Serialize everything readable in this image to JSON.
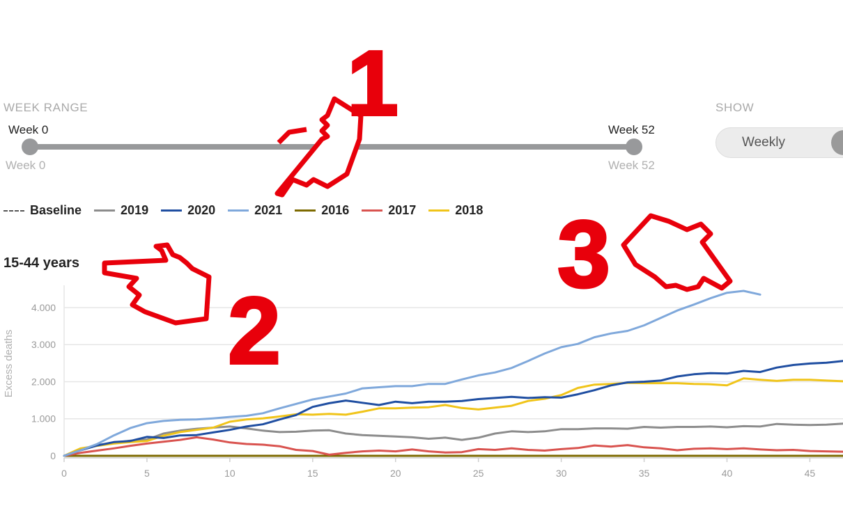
{
  "week_range": {
    "label": "WEEK RANGE",
    "start_top": "Week 0",
    "end_top": "Week 52",
    "start_bottom": "Week 0",
    "end_bottom": "Week 52"
  },
  "show": {
    "label": "SHOW",
    "option": "Weekly"
  },
  "legend": [
    {
      "name": "Baseline",
      "color": "#555555",
      "dashed": true
    },
    {
      "name": "2019",
      "color": "#8c8c8c"
    },
    {
      "name": "2020",
      "color": "#1f4ea1"
    },
    {
      "name": "2021",
      "color": "#7fa8db"
    },
    {
      "name": "2016",
      "color": "#7d6a00"
    },
    {
      "name": "2017",
      "color": "#d9534f"
    },
    {
      "name": "2018",
      "color": "#f0c419"
    }
  ],
  "section_title": "15-44 years",
  "annotations": [
    "1",
    "2",
    "3"
  ],
  "chart_data": {
    "type": "line",
    "ylabel": "Excess deaths",
    "xlabel": "",
    "xlim": [
      0,
      47
    ],
    "ylim": [
      0,
      4600
    ],
    "x_ticks": [
      "0",
      "5",
      "10",
      "15",
      "20",
      "25",
      "30",
      "35",
      "40",
      "45"
    ],
    "y_ticks": [
      {
        "v": 0,
        "label": "0"
      },
      {
        "v": 1000,
        "label": "1.000"
      },
      {
        "v": 2000,
        "label": "2.000"
      },
      {
        "v": 3000,
        "label": "3.000"
      },
      {
        "v": 4000,
        "label": "4.000"
      }
    ],
    "series": [
      {
        "name": "2021",
        "color": "#7fa8db",
        "x": [
          0,
          1,
          2,
          3,
          4,
          5,
          6,
          7,
          8,
          9,
          10,
          11,
          12,
          13,
          14,
          15,
          16,
          17,
          18,
          19,
          20,
          21,
          22,
          23,
          24,
          25,
          26,
          27,
          28,
          29,
          30,
          31,
          32,
          33,
          34,
          35,
          36,
          37,
          38,
          39,
          40,
          41,
          42
        ],
        "values": [
          0,
          150,
          320,
          550,
          750,
          880,
          940,
          970,
          980,
          1010,
          1050,
          1080,
          1150,
          1280,
          1400,
          1520,
          1600,
          1680,
          1820,
          1850,
          1880,
          1880,
          1940,
          1940,
          2060,
          2170,
          2250,
          2370,
          2560,
          2760,
          2930,
          3020,
          3200,
          3300,
          3370,
          3520,
          3720,
          3920,
          4080,
          4250,
          4400,
          4450,
          4350
        ]
      },
      {
        "name": "2020",
        "color": "#1f4ea1",
        "x": [
          0,
          1,
          2,
          3,
          4,
          5,
          6,
          7,
          8,
          9,
          10,
          11,
          12,
          13,
          14,
          15,
          16,
          17,
          18,
          19,
          20,
          21,
          22,
          23,
          24,
          25,
          26,
          27,
          28,
          29,
          30,
          31,
          32,
          33,
          34,
          35,
          36,
          37,
          38,
          39,
          40,
          41,
          42,
          43,
          44,
          45,
          46,
          47
        ],
        "values": [
          0,
          150,
          280,
          370,
          400,
          510,
          480,
          550,
          560,
          630,
          700,
          790,
          850,
          980,
          1100,
          1320,
          1420,
          1490,
          1430,
          1370,
          1460,
          1420,
          1460,
          1460,
          1480,
          1530,
          1560,
          1590,
          1560,
          1580,
          1570,
          1660,
          1770,
          1900,
          1980,
          2000,
          2030,
          2140,
          2200,
          2230,
          2220,
          2290,
          2260,
          2380,
          2450,
          2490,
          2510,
          2560
        ]
      },
      {
        "name": "2018",
        "color": "#f0c419",
        "x": [
          0,
          1,
          2,
          3,
          4,
          5,
          6,
          7,
          8,
          9,
          10,
          11,
          12,
          13,
          14,
          15,
          16,
          17,
          18,
          19,
          20,
          21,
          22,
          23,
          24,
          25,
          26,
          27,
          28,
          29,
          30,
          31,
          32,
          33,
          34,
          35,
          36,
          37,
          38,
          39,
          40,
          41,
          42,
          43,
          44,
          45,
          46,
          47
        ],
        "values": [
          0,
          200,
          270,
          330,
          370,
          400,
          540,
          640,
          700,
          760,
          920,
          980,
          1010,
          1060,
          1120,
          1110,
          1130,
          1110,
          1190,
          1280,
          1280,
          1300,
          1310,
          1370,
          1290,
          1250,
          1300,
          1350,
          1480,
          1540,
          1640,
          1830,
          1920,
          1940,
          1970,
          1960,
          1960,
          1960,
          1940,
          1930,
          1900,
          2090,
          2050,
          2020,
          2050,
          2050,
          2030,
          2010
        ]
      },
      {
        "name": "2019",
        "color": "#8c8c8c",
        "x": [
          0,
          1,
          2,
          3,
          4,
          5,
          6,
          7,
          8,
          9,
          10,
          11,
          12,
          13,
          14,
          15,
          16,
          17,
          18,
          19,
          20,
          21,
          22,
          23,
          24,
          25,
          26,
          27,
          28,
          29,
          30,
          31,
          32,
          33,
          34,
          35,
          36,
          37,
          38,
          39,
          40,
          41,
          42,
          43,
          44,
          45,
          46,
          47
        ],
        "values": [
          0,
          170,
          290,
          350,
          410,
          440,
          600,
          680,
          730,
          760,
          790,
          740,
          680,
          640,
          650,
          680,
          690,
          600,
          560,
          540,
          520,
          500,
          460,
          490,
          430,
          490,
          600,
          660,
          640,
          660,
          720,
          720,
          740,
          740,
          730,
          780,
          760,
          780,
          780,
          790,
          770,
          800,
          790,
          860,
          840,
          830,
          840,
          870
        ]
      },
      {
        "name": "2017",
        "color": "#d9534f",
        "x": [
          0,
          1,
          2,
          3,
          4,
          5,
          6,
          7,
          8,
          9,
          10,
          11,
          12,
          13,
          14,
          15,
          16,
          17,
          18,
          19,
          20,
          21,
          22,
          23,
          24,
          25,
          26,
          27,
          28,
          29,
          30,
          31,
          32,
          33,
          34,
          35,
          36,
          37,
          38,
          39,
          40,
          41,
          42,
          43,
          44,
          45,
          46,
          47
        ],
        "values": [
          0,
          80,
          140,
          200,
          270,
          330,
          380,
          430,
          500,
          440,
          360,
          320,
          300,
          260,
          160,
          130,
          30,
          80,
          120,
          140,
          120,
          170,
          120,
          90,
          100,
          180,
          160,
          200,
          160,
          140,
          180,
          210,
          280,
          250,
          290,
          230,
          200,
          150,
          190,
          200,
          180,
          200,
          170,
          150,
          160,
          130,
          120,
          110
        ]
      },
      {
        "name": "2016",
        "color": "#7d6a00",
        "x": [
          0,
          47
        ],
        "values": [
          0,
          0
        ]
      },
      {
        "name": "Baseline",
        "color": "#555555",
        "dashed": true,
        "x": [
          0,
          47
        ],
        "values": [
          0,
          0
        ]
      }
    ]
  }
}
